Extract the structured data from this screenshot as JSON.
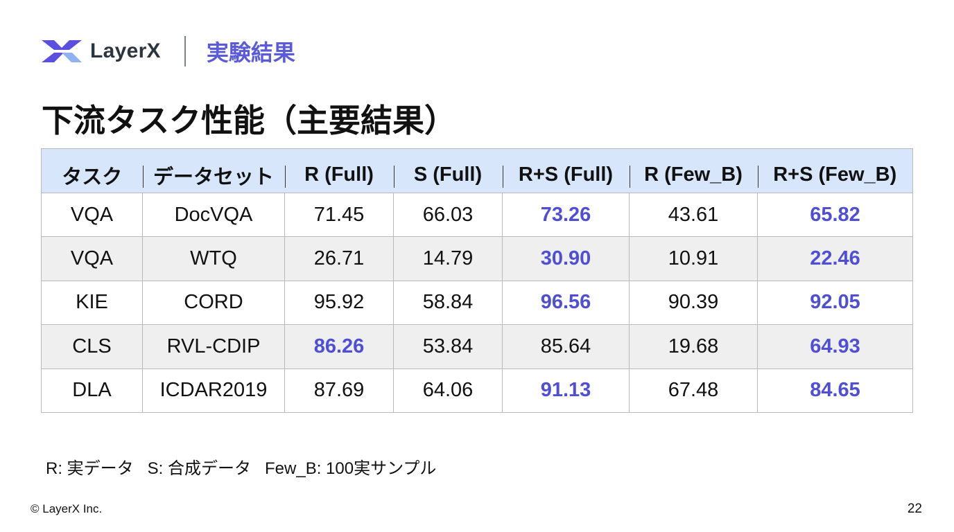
{
  "header": {
    "brand": "LayerX",
    "section": "実験結果",
    "colors": {
      "logo_dark": "#5b4fe0",
      "logo_light": "#8fb2f0",
      "accent": "#5b5bd9"
    }
  },
  "title": "下流タスク性能（主要結果）",
  "table": {
    "columns": [
      "タスク",
      "データセット",
      "R (Full)",
      "S (Full)",
      "R+S (Full)",
      "R (Few_B)",
      "R+S (Few_B)"
    ],
    "rows": [
      {
        "cells": [
          "VQA",
          "DocVQA",
          "71.45",
          "66.03",
          "73.26",
          "43.61",
          "65.82"
        ],
        "best": [
          4,
          6
        ]
      },
      {
        "cells": [
          "VQA",
          "WTQ",
          "26.71",
          "14.79",
          "30.90",
          "10.91",
          "22.46"
        ],
        "best": [
          4,
          6
        ]
      },
      {
        "cells": [
          "KIE",
          "CORD",
          "95.92",
          "58.84",
          "96.56",
          "90.39",
          "92.05"
        ],
        "best": [
          4,
          6
        ]
      },
      {
        "cells": [
          "CLS",
          "RVL-CDIP",
          "86.26",
          "53.84",
          "85.64",
          "19.68",
          "64.93"
        ],
        "best": [
          2,
          6
        ]
      },
      {
        "cells": [
          "DLA",
          "ICDAR2019",
          "87.69",
          "64.06",
          "91.13",
          "67.48",
          "84.65"
        ],
        "best": [
          4,
          6
        ]
      }
    ],
    "colors": {
      "header_bg": "#d7e6fb",
      "highlight": "#4f4fd6",
      "stripe": "#efefef"
    }
  },
  "legend": "R: 実データ   S: 合成データ   Few_B: 100実サンプル",
  "footer": {
    "copyright": "© LayerX Inc.",
    "page": "22"
  }
}
